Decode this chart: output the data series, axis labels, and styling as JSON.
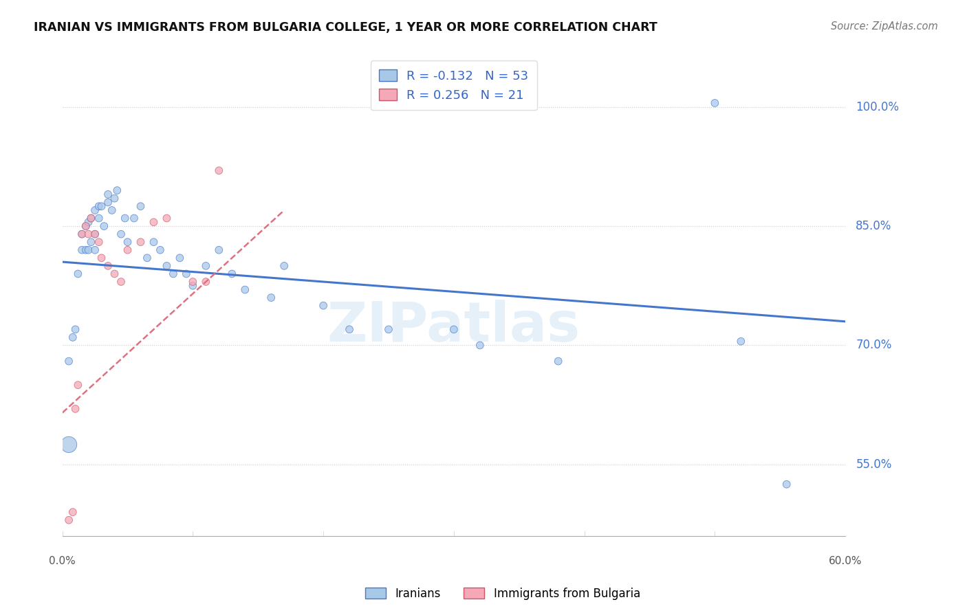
{
  "title": "IRANIAN VS IMMIGRANTS FROM BULGARIA COLLEGE, 1 YEAR OR MORE CORRELATION CHART",
  "source": "Source: ZipAtlas.com",
  "ylabel": "College, 1 year or more",
  "watermark": "ZIPatlas",
  "legend_blue_R": "-0.132",
  "legend_blue_N": "53",
  "legend_pink_R": "0.256",
  "legend_pink_N": "21",
  "legend_label_blue": "Iranians",
  "legend_label_pink": "Immigrants from Bulgaria",
  "blue_color": "#a8c8e8",
  "pink_color": "#f4a8b8",
  "trendline_blue_color": "#4477cc",
  "trendline_pink_color": "#e07080",
  "xlim": [
    0.0,
    0.6
  ],
  "ylim": [
    0.46,
    1.06
  ],
  "ytick_vals": [
    0.55,
    0.7,
    0.85,
    1.0
  ],
  "ytick_labels": [
    "55.0%",
    "70.0%",
    "85.0%",
    "100.0%"
  ],
  "blue_x": [
    0.005,
    0.005,
    0.008,
    0.01,
    0.012,
    0.015,
    0.015,
    0.018,
    0.018,
    0.02,
    0.02,
    0.022,
    0.022,
    0.025,
    0.025,
    0.025,
    0.028,
    0.028,
    0.03,
    0.032,
    0.035,
    0.035,
    0.038,
    0.04,
    0.042,
    0.045,
    0.048,
    0.05,
    0.055,
    0.06,
    0.065,
    0.07,
    0.075,
    0.08,
    0.085,
    0.09,
    0.095,
    0.1,
    0.11,
    0.12,
    0.13,
    0.14,
    0.16,
    0.17,
    0.2,
    0.22,
    0.25,
    0.3,
    0.32,
    0.38,
    0.5,
    0.52,
    0.555
  ],
  "blue_y": [
    0.575,
    0.68,
    0.71,
    0.72,
    0.79,
    0.82,
    0.84,
    0.82,
    0.85,
    0.82,
    0.855,
    0.83,
    0.86,
    0.82,
    0.84,
    0.87,
    0.86,
    0.875,
    0.875,
    0.85,
    0.88,
    0.89,
    0.87,
    0.885,
    0.895,
    0.84,
    0.86,
    0.83,
    0.86,
    0.875,
    0.81,
    0.83,
    0.82,
    0.8,
    0.79,
    0.81,
    0.79,
    0.775,
    0.8,
    0.82,
    0.79,
    0.77,
    0.76,
    0.8,
    0.75,
    0.72,
    0.72,
    0.72,
    0.7,
    0.68,
    1.005,
    0.705,
    0.525
  ],
  "blue_size_default": 60,
  "blue_sizes_special": [
    [
      0,
      280
    ]
  ],
  "pink_x": [
    0.005,
    0.008,
    0.01,
    0.012,
    0.015,
    0.018,
    0.02,
    0.022,
    0.025,
    0.028,
    0.03,
    0.035,
    0.04,
    0.045,
    0.05,
    0.06,
    0.07,
    0.08,
    0.1,
    0.11,
    0.12
  ],
  "pink_y": [
    0.48,
    0.49,
    0.62,
    0.65,
    0.84,
    0.85,
    0.84,
    0.86,
    0.84,
    0.83,
    0.81,
    0.8,
    0.79,
    0.78,
    0.82,
    0.83,
    0.855,
    0.86,
    0.78,
    0.78,
    0.92
  ],
  "pink_size_default": 60,
  "trendline_blue_x0": 0.0,
  "trendline_blue_x1": 0.6,
  "trendline_blue_y0": 0.805,
  "trendline_blue_y1": 0.73,
  "trendline_pink_x0": 0.0,
  "trendline_pink_x1": 0.17,
  "trendline_pink_y0": 0.615,
  "trendline_pink_y1": 0.87
}
